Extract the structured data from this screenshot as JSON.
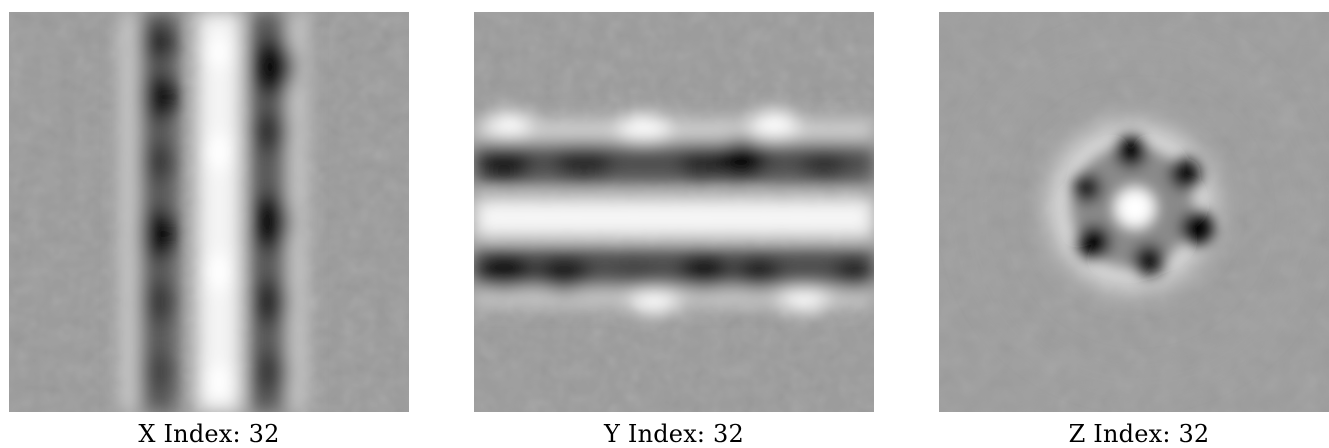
{
  "panels": [
    {
      "axis": "X",
      "caption": "X Index: 32"
    },
    {
      "axis": "Y",
      "caption": "Y Index: 32"
    },
    {
      "axis": "Z",
      "caption": "Z Index: 32"
    }
  ],
  "colors": {
    "background": "#9a9a9a",
    "bright": "#ffffff",
    "dark": "#000000"
  }
}
